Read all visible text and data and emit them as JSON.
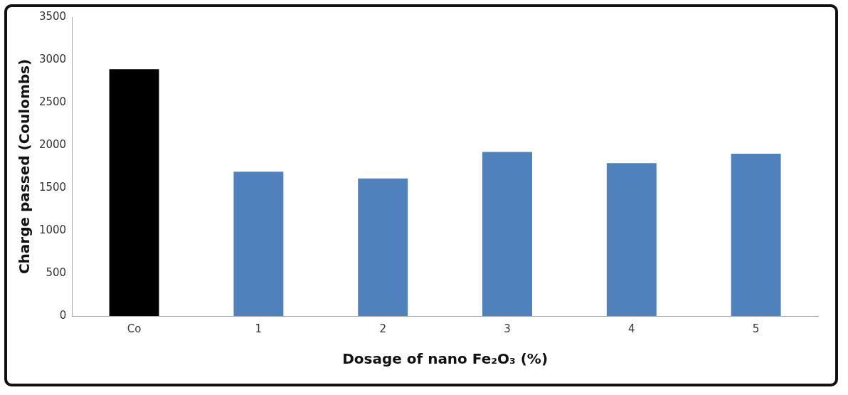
{
  "chart_data": {
    "type": "bar",
    "xlabel": "Dosage of nano Fe₂O₃ (%)",
    "ylabel": "Charge passed (Coulombs)",
    "categories": [
      "Co",
      "1",
      "2",
      "3",
      "4",
      "5"
    ],
    "values": [
      2890,
      1690,
      1610,
      1920,
      1790,
      1900
    ],
    "colors": [
      "#000000",
      "#4f81bd",
      "#4f81bd",
      "#4f81bd",
      "#4f81bd",
      "#4f81bd"
    ],
    "ylim": [
      0,
      3500
    ],
    "yticks": [
      0,
      500,
      1000,
      1500,
      2000,
      2500,
      3000,
      3500
    ],
    "grid": false,
    "legend": false
  }
}
